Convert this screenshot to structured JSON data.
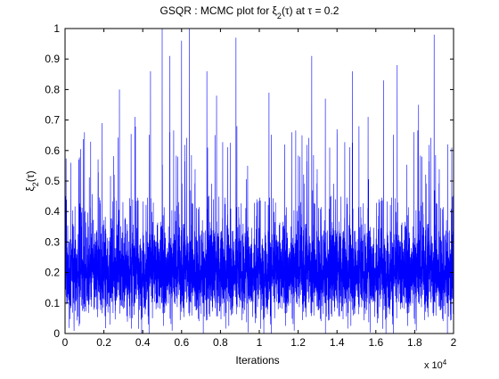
{
  "chart_data": {
    "type": "line",
    "title": {
      "prefix": "GSQR : MCMC plot for ",
      "xi": "ξ",
      "sub": "2",
      "mid": "(τ) at ",
      "tau": "τ",
      "suffix": " = 0.2"
    },
    "xlabel": "Iterations",
    "ylabel": {
      "xi": "ξ",
      "sub": "2",
      "suffix": "(τ)"
    },
    "x_multiplier": {
      "base": "x 10",
      "exp": "4"
    },
    "xlim": [
      0,
      20000
    ],
    "ylim": [
      0,
      1
    ],
    "x_ticks": [
      0,
      2000,
      4000,
      6000,
      8000,
      10000,
      12000,
      14000,
      16000,
      18000,
      20000
    ],
    "x_tick_labels": [
      "0",
      "0.2",
      "0.4",
      "0.6",
      "0.8",
      "1",
      "1.2",
      "1.4",
      "1.6",
      "1.8",
      "2"
    ],
    "y_ticks": [
      0,
      0.1,
      0.2,
      0.3,
      0.4,
      0.5,
      0.6,
      0.7,
      0.8,
      0.9,
      1
    ],
    "y_tick_labels": [
      "0",
      "0.1",
      "0.2",
      "0.3",
      "0.4",
      "0.5",
      "0.6",
      "0.7",
      "0.8",
      "0.9",
      "1"
    ],
    "grid": false,
    "series": [
      {
        "color": "#0000ff",
        "n_iterations": 20000,
        "center": 0.2,
        "typical_band": [
          0.07,
          0.33
        ],
        "min": 0.0,
        "max": 1.0,
        "peaks": [
          {
            "x": 5000,
            "y": 1.0
          },
          {
            "x": 6400,
            "y": 1.0
          },
          {
            "x": 6000,
            "y": 0.96
          },
          {
            "x": 8800,
            "y": 0.97
          },
          {
            "x": 19000,
            "y": 0.98
          },
          {
            "x": 5400,
            "y": 0.91
          },
          {
            "x": 12700,
            "y": 0.91
          },
          {
            "x": 17100,
            "y": 0.88
          },
          {
            "x": 14800,
            "y": 0.86
          },
          {
            "x": 7300,
            "y": 0.86
          },
          {
            "x": 4400,
            "y": 0.86
          },
          {
            "x": 16400,
            "y": 0.83
          },
          {
            "x": 2800,
            "y": 0.8
          },
          {
            "x": 10500,
            "y": 0.79
          },
          {
            "x": 13400,
            "y": 0.77
          },
          {
            "x": 7800,
            "y": 0.78
          },
          {
            "x": 18200,
            "y": 0.75
          },
          {
            "x": 3600,
            "y": 0.71
          },
          {
            "x": 15600,
            "y": 0.71
          },
          {
            "x": 1900,
            "y": 0.69
          },
          {
            "x": 1000,
            "y": 0.66
          },
          {
            "x": 300,
            "y": 0.56
          },
          {
            "x": 11300,
            "y": 0.62
          },
          {
            "x": 9400,
            "y": 0.55
          },
          {
            "x": 19700,
            "y": 0.62
          },
          {
            "x": 12200,
            "y": 0.65
          },
          {
            "x": 14000,
            "y": 0.67
          }
        ]
      }
    ]
  }
}
